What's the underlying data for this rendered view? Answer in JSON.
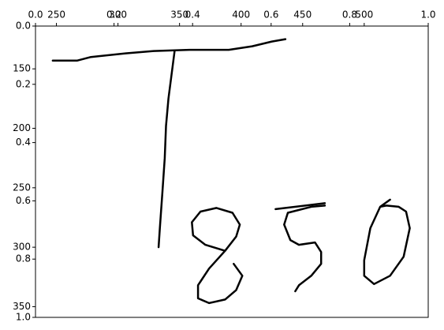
{
  "chart_data": {
    "type": "line",
    "xlim": [
      233,
      552
    ],
    "xticks": [
      250,
      300,
      350,
      400,
      450,
      500
    ],
    "ylim": [
      114,
      359
    ],
    "yticks": [
      150,
      200,
      250,
      300,
      350
    ],
    "x2lim": [
      0,
      1
    ],
    "x2ticks": [
      {
        "value": 0,
        "label": "0.0"
      },
      0.2,
      0.4,
      0.6,
      0.8,
      {
        "value": 1,
        "label": "1.0"
      }
    ],
    "y2lim": [
      0,
      1
    ],
    "y2ticks": [
      {
        "value": 0,
        "label": "0.0"
      },
      0.2,
      0.4,
      0.6,
      0.8,
      {
        "value": 1,
        "label": "1.0"
      }
    ],
    "y_inverted": true,
    "series": [
      {
        "color": "#000000",
        "x": [
          247,
          267,
          278,
          306,
          329,
          358,
          390,
          409,
          425,
          436
        ],
        "values": [
          143,
          143,
          140,
          137,
          135,
          134,
          134,
          131,
          127,
          125
        ]
      },
      {
        "color": "#000000",
        "x": [
          346,
          341,
          339,
          338,
          336,
          334,
          333
        ],
        "values": [
          135,
          175,
          198,
          225,
          255,
          284,
          300
        ]
      },
      {
        "color": "#000000",
        "x": [
          394,
          401,
          396,
          387,
          374,
          365,
          365,
          374,
          387,
          396,
          399,
          393,
          380,
          367,
          360,
          361,
          371,
          387
        ],
        "values": [
          314,
          324,
          336,
          344,
          347,
          343,
          332,
          318,
          303,
          291,
          281,
          271,
          267,
          270,
          279,
          290,
          298,
          303
        ]
      },
      {
        "color": "#000000",
        "x": [
          428,
          468
        ],
        "values": [
          268,
          263
        ]
      },
      {
        "color": "#000000",
        "x": [
          468,
          457,
          438,
          435,
          440,
          447,
          460,
          465,
          465,
          457,
          447,
          444
        ],
        "values": [
          265,
          266,
          271,
          281,
          294,
          298,
          296,
          304,
          314,
          324,
          332,
          337
        ]
      },
      {
        "color": "#000000",
        "x": [
          521,
          513,
          505,
          500,
          500,
          508,
          521,
          532,
          537,
          534,
          528,
          518,
          513
        ],
        "values": [
          260,
          266,
          284,
          311,
          324,
          331,
          324,
          308,
          284,
          270,
          266,
          265,
          266
        ]
      }
    ]
  }
}
